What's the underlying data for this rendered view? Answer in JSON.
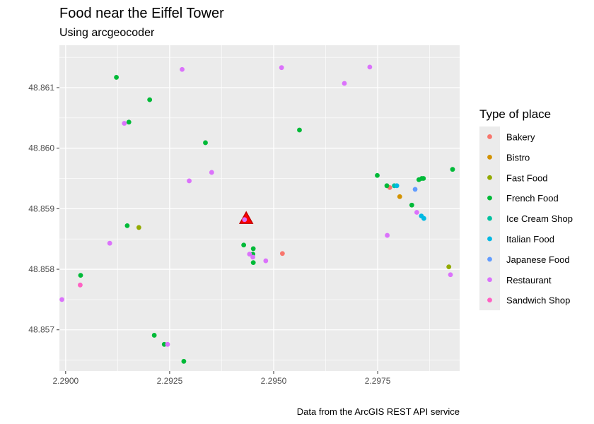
{
  "chart_data": {
    "type": "scatter",
    "title": "Food near the Eiffel Tower",
    "subtitle": "Using arcgeocoder",
    "caption": "Data from the ArcGIS REST API service",
    "xlabel": "",
    "ylabel": "",
    "xlim": [
      2.28985,
      2.29947
    ],
    "ylim": [
      48.85632,
      48.8617
    ],
    "x_ticks": [
      2.29,
      2.2925,
      2.295,
      2.2975
    ],
    "x_tick_labels": [
      "2.2900",
      "2.2925",
      "2.2950",
      "2.2975"
    ],
    "y_ticks": [
      48.857,
      48.858,
      48.859,
      48.86,
      48.861
    ],
    "y_tick_labels": [
      "48.857",
      "48.858",
      "48.859",
      "48.860",
      "48.861"
    ],
    "grid": true,
    "background": "#ebebeb",
    "legend": {
      "title": "Type of place",
      "position": "right",
      "entries": [
        {
          "name": "Bakery",
          "color": "#F8766D"
        },
        {
          "name": "Bistro",
          "color": "#D39200"
        },
        {
          "name": "Fast Food",
          "color": "#93AA00"
        },
        {
          "name": "French Food",
          "color": "#00BA38"
        },
        {
          "name": "Ice Cream Shop",
          "color": "#00C19F"
        },
        {
          "name": "Italian Food",
          "color": "#00B9E3"
        },
        {
          "name": "Japanese Food",
          "color": "#619CFF"
        },
        {
          "name": "Restaurant",
          "color": "#DB72FB"
        },
        {
          "name": "Sandwich Shop",
          "color": "#FF61C3"
        }
      ]
    },
    "landmark": {
      "x": 2.29434,
      "y": 48.85884,
      "marker": "triangle",
      "fill": "#FF0000",
      "outline": "#C00000"
    },
    "series": [
      {
        "name": "Bakery",
        "color": "#F8766D",
        "points": [
          [
            2.29521,
            48.85826
          ],
          [
            2.29779,
            48.85935
          ]
        ]
      },
      {
        "name": "Bistro",
        "color": "#D39200",
        "points": [
          [
            2.29803,
            48.8592
          ]
        ]
      },
      {
        "name": "Fast Food",
        "color": "#93AA00",
        "points": [
          [
            2.29176,
            48.85869
          ],
          [
            2.29921,
            48.85804
          ]
        ]
      },
      {
        "name": "French Food",
        "color": "#00BA38",
        "points": [
          [
            2.29122,
            48.86117
          ],
          [
            2.29202,
            48.8608
          ],
          [
            2.29152,
            48.86043
          ],
          [
            2.29336,
            48.86009
          ],
          [
            2.29562,
            48.8603
          ],
          [
            2.29148,
            48.85872
          ],
          [
            2.29036,
            48.8579
          ],
          [
            2.29213,
            48.85691
          ],
          [
            2.29237,
            48.85676
          ],
          [
            2.29284,
            48.85648
          ],
          [
            2.29428,
            48.8584
          ],
          [
            2.29451,
            48.85834
          ],
          [
            2.2945,
            48.85825
          ],
          [
            2.29451,
            48.85811
          ],
          [
            2.29749,
            48.85955
          ],
          [
            2.29772,
            48.85938
          ],
          [
            2.29849,
            48.85948
          ],
          [
            2.29856,
            48.8595
          ],
          [
            2.2986,
            48.8595
          ],
          [
            2.29832,
            48.85906
          ],
          [
            2.2993,
            48.85965
          ]
        ]
      },
      {
        "name": "Ice Cream Shop",
        "color": "#00C19F",
        "points": [
          [
            2.2979,
            48.85938
          ]
        ]
      },
      {
        "name": "Italian Food",
        "color": "#00B9E3",
        "points": [
          [
            2.29796,
            48.85938
          ],
          [
            2.29855,
            48.85888
          ],
          [
            2.29861,
            48.85884
          ]
        ]
      },
      {
        "name": "Japanese Food",
        "color": "#619CFF",
        "points": [
          [
            2.2984,
            48.85932
          ]
        ]
      },
      {
        "name": "Restaurant",
        "color": "#DB72FB",
        "points": [
          [
            2.2928,
            48.8613
          ],
          [
            2.29519,
            48.86133
          ],
          [
            2.2967,
            48.86107
          ],
          [
            2.29731,
            48.86134
          ],
          [
            2.29141,
            48.86041
          ],
          [
            2.29297,
            48.85946
          ],
          [
            2.29351,
            48.8596
          ],
          [
            2.29106,
            48.85843
          ],
          [
            2.28991,
            48.8575
          ],
          [
            2.29245,
            48.85676
          ],
          [
            2.29442,
            48.85825
          ],
          [
            2.2945,
            48.8582
          ],
          [
            2.29481,
            48.85814
          ],
          [
            2.2943,
            48.85882
          ],
          [
            2.29773,
            48.85856
          ],
          [
            2.29844,
            48.85894
          ],
          [
            2.29925,
            48.85791
          ]
        ]
      },
      {
        "name": "Sandwich Shop",
        "color": "#FF61C3",
        "points": [
          [
            2.29035,
            48.85774
          ]
        ]
      }
    ]
  }
}
